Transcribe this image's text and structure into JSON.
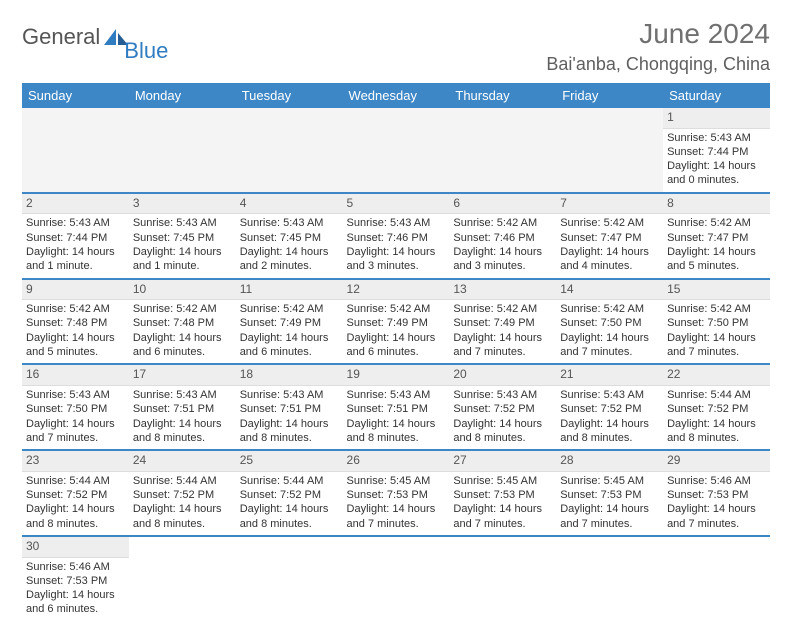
{
  "logo": {
    "text_main": "General",
    "text_sub": "Blue"
  },
  "title": "June 2024",
  "location": "Bai'anba, Chongqing, China",
  "colors": {
    "header_bg": "#3d87c7",
    "header_fg": "#ffffff",
    "daynum_bg": "#eeeeee",
    "border": "#3d87c7",
    "logo_blue": "#2f7cc0",
    "logo_gray": "#555555"
  },
  "days_of_week": [
    "Sunday",
    "Monday",
    "Tuesday",
    "Wednesday",
    "Thursday",
    "Friday",
    "Saturday"
  ],
  "weeks": [
    [
      null,
      null,
      null,
      null,
      null,
      null,
      {
        "n": "1",
        "sunrise": "Sunrise: 5:43 AM",
        "sunset": "Sunset: 7:44 PM",
        "daylight1": "Daylight: 14 hours",
        "daylight2": "and 0 minutes."
      }
    ],
    [
      {
        "n": "2",
        "sunrise": "Sunrise: 5:43 AM",
        "sunset": "Sunset: 7:44 PM",
        "daylight1": "Daylight: 14 hours",
        "daylight2": "and 1 minute."
      },
      {
        "n": "3",
        "sunrise": "Sunrise: 5:43 AM",
        "sunset": "Sunset: 7:45 PM",
        "daylight1": "Daylight: 14 hours",
        "daylight2": "and 1 minute."
      },
      {
        "n": "4",
        "sunrise": "Sunrise: 5:43 AM",
        "sunset": "Sunset: 7:45 PM",
        "daylight1": "Daylight: 14 hours",
        "daylight2": "and 2 minutes."
      },
      {
        "n": "5",
        "sunrise": "Sunrise: 5:43 AM",
        "sunset": "Sunset: 7:46 PM",
        "daylight1": "Daylight: 14 hours",
        "daylight2": "and 3 minutes."
      },
      {
        "n": "6",
        "sunrise": "Sunrise: 5:42 AM",
        "sunset": "Sunset: 7:46 PM",
        "daylight1": "Daylight: 14 hours",
        "daylight2": "and 3 minutes."
      },
      {
        "n": "7",
        "sunrise": "Sunrise: 5:42 AM",
        "sunset": "Sunset: 7:47 PM",
        "daylight1": "Daylight: 14 hours",
        "daylight2": "and 4 minutes."
      },
      {
        "n": "8",
        "sunrise": "Sunrise: 5:42 AM",
        "sunset": "Sunset: 7:47 PM",
        "daylight1": "Daylight: 14 hours",
        "daylight2": "and 5 minutes."
      }
    ],
    [
      {
        "n": "9",
        "sunrise": "Sunrise: 5:42 AM",
        "sunset": "Sunset: 7:48 PM",
        "daylight1": "Daylight: 14 hours",
        "daylight2": "and 5 minutes."
      },
      {
        "n": "10",
        "sunrise": "Sunrise: 5:42 AM",
        "sunset": "Sunset: 7:48 PM",
        "daylight1": "Daylight: 14 hours",
        "daylight2": "and 6 minutes."
      },
      {
        "n": "11",
        "sunrise": "Sunrise: 5:42 AM",
        "sunset": "Sunset: 7:49 PM",
        "daylight1": "Daylight: 14 hours",
        "daylight2": "and 6 minutes."
      },
      {
        "n": "12",
        "sunrise": "Sunrise: 5:42 AM",
        "sunset": "Sunset: 7:49 PM",
        "daylight1": "Daylight: 14 hours",
        "daylight2": "and 6 minutes."
      },
      {
        "n": "13",
        "sunrise": "Sunrise: 5:42 AM",
        "sunset": "Sunset: 7:49 PM",
        "daylight1": "Daylight: 14 hours",
        "daylight2": "and 7 minutes."
      },
      {
        "n": "14",
        "sunrise": "Sunrise: 5:42 AM",
        "sunset": "Sunset: 7:50 PM",
        "daylight1": "Daylight: 14 hours",
        "daylight2": "and 7 minutes."
      },
      {
        "n": "15",
        "sunrise": "Sunrise: 5:42 AM",
        "sunset": "Sunset: 7:50 PM",
        "daylight1": "Daylight: 14 hours",
        "daylight2": "and 7 minutes."
      }
    ],
    [
      {
        "n": "16",
        "sunrise": "Sunrise: 5:43 AM",
        "sunset": "Sunset: 7:50 PM",
        "daylight1": "Daylight: 14 hours",
        "daylight2": "and 7 minutes."
      },
      {
        "n": "17",
        "sunrise": "Sunrise: 5:43 AM",
        "sunset": "Sunset: 7:51 PM",
        "daylight1": "Daylight: 14 hours",
        "daylight2": "and 8 minutes."
      },
      {
        "n": "18",
        "sunrise": "Sunrise: 5:43 AM",
        "sunset": "Sunset: 7:51 PM",
        "daylight1": "Daylight: 14 hours",
        "daylight2": "and 8 minutes."
      },
      {
        "n": "19",
        "sunrise": "Sunrise: 5:43 AM",
        "sunset": "Sunset: 7:51 PM",
        "daylight1": "Daylight: 14 hours",
        "daylight2": "and 8 minutes."
      },
      {
        "n": "20",
        "sunrise": "Sunrise: 5:43 AM",
        "sunset": "Sunset: 7:52 PM",
        "daylight1": "Daylight: 14 hours",
        "daylight2": "and 8 minutes."
      },
      {
        "n": "21",
        "sunrise": "Sunrise: 5:43 AM",
        "sunset": "Sunset: 7:52 PM",
        "daylight1": "Daylight: 14 hours",
        "daylight2": "and 8 minutes."
      },
      {
        "n": "22",
        "sunrise": "Sunrise: 5:44 AM",
        "sunset": "Sunset: 7:52 PM",
        "daylight1": "Daylight: 14 hours",
        "daylight2": "and 8 minutes."
      }
    ],
    [
      {
        "n": "23",
        "sunrise": "Sunrise: 5:44 AM",
        "sunset": "Sunset: 7:52 PM",
        "daylight1": "Daylight: 14 hours",
        "daylight2": "and 8 minutes."
      },
      {
        "n": "24",
        "sunrise": "Sunrise: 5:44 AM",
        "sunset": "Sunset: 7:52 PM",
        "daylight1": "Daylight: 14 hours",
        "daylight2": "and 8 minutes."
      },
      {
        "n": "25",
        "sunrise": "Sunrise: 5:44 AM",
        "sunset": "Sunset: 7:52 PM",
        "daylight1": "Daylight: 14 hours",
        "daylight2": "and 8 minutes."
      },
      {
        "n": "26",
        "sunrise": "Sunrise: 5:45 AM",
        "sunset": "Sunset: 7:53 PM",
        "daylight1": "Daylight: 14 hours",
        "daylight2": "and 7 minutes."
      },
      {
        "n": "27",
        "sunrise": "Sunrise: 5:45 AM",
        "sunset": "Sunset: 7:53 PM",
        "daylight1": "Daylight: 14 hours",
        "daylight2": "and 7 minutes."
      },
      {
        "n": "28",
        "sunrise": "Sunrise: 5:45 AM",
        "sunset": "Sunset: 7:53 PM",
        "daylight1": "Daylight: 14 hours",
        "daylight2": "and 7 minutes."
      },
      {
        "n": "29",
        "sunrise": "Sunrise: 5:46 AM",
        "sunset": "Sunset: 7:53 PM",
        "daylight1": "Daylight: 14 hours",
        "daylight2": "and 7 minutes."
      }
    ],
    [
      {
        "n": "30",
        "sunrise": "Sunrise: 5:46 AM",
        "sunset": "Sunset: 7:53 PM",
        "daylight1": "Daylight: 14 hours",
        "daylight2": "and 6 minutes."
      },
      null,
      null,
      null,
      null,
      null,
      null
    ]
  ]
}
